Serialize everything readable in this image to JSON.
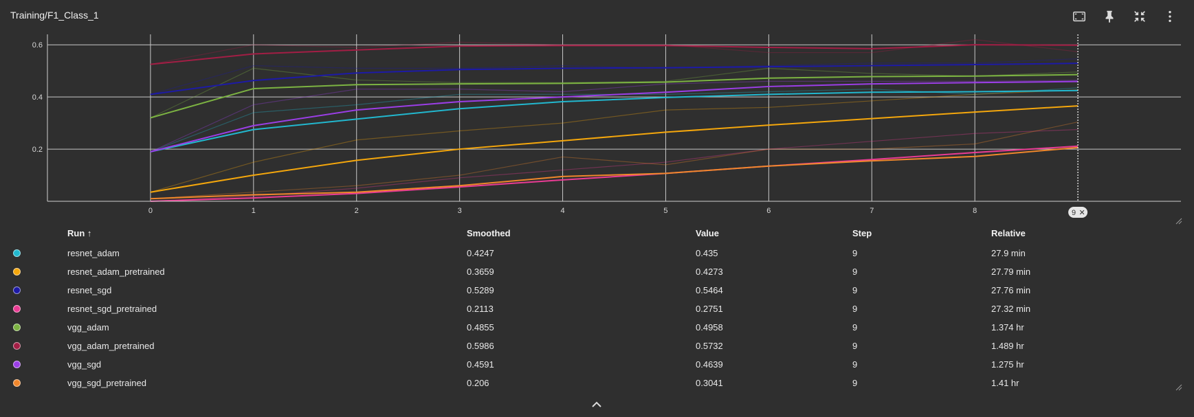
{
  "header": {
    "title": "Training/F1_Class_1"
  },
  "toolbar": {
    "items": [
      {
        "name": "fit-domain-button",
        "icon": "fit-screen-icon"
      },
      {
        "name": "pin-button",
        "icon": "pin-icon"
      },
      {
        "name": "collapse-card-button",
        "icon": "fullscreen-exit-icon"
      },
      {
        "name": "more-menu-button",
        "icon": "more-vert-icon"
      }
    ]
  },
  "cursor_step_label": "9",
  "chart_data": {
    "type": "line",
    "title": "Training/F1_Class_1",
    "xlabel": "",
    "ylabel": "",
    "xlim": [
      -1,
      10.0
    ],
    "ylim": [
      0,
      0.64
    ],
    "xticks": [
      0,
      1,
      2,
      3,
      4,
      5,
      6,
      7,
      8
    ],
    "yticks": [
      0.2,
      0.4,
      0.6
    ],
    "grid": true,
    "x": [
      0,
      1,
      2,
      3,
      4,
      5,
      6,
      7,
      8,
      9
    ],
    "series": [
      {
        "name": "resnet_adam",
        "color": "#22b8cf",
        "smoothed": [
          0.19,
          0.275,
          0.315,
          0.355,
          0.382,
          0.398,
          0.41,
          0.418,
          0.42,
          0.4247
        ],
        "raw": [
          0.19,
          0.34,
          0.37,
          0.41,
          0.41,
          0.41,
          0.42,
          0.43,
          0.41,
          0.435
        ]
      },
      {
        "name": "resnet_adam_pretrained",
        "color": "#f5a70c",
        "smoothed": [
          0.035,
          0.1,
          0.157,
          0.2,
          0.232,
          0.265,
          0.292,
          0.317,
          0.342,
          0.3659
        ],
        "raw": [
          0.035,
          0.15,
          0.235,
          0.27,
          0.3,
          0.35,
          0.36,
          0.385,
          0.41,
          0.4273
        ]
      },
      {
        "name": "resnet_sgd",
        "color": "#1d1aa6",
        "smoothed": [
          0.41,
          0.463,
          0.492,
          0.505,
          0.51,
          0.512,
          0.516,
          0.52,
          0.524,
          0.5289
        ],
        "raw": [
          0.41,
          0.52,
          0.51,
          0.51,
          0.52,
          0.51,
          0.52,
          0.53,
          0.53,
          0.5464
        ]
      },
      {
        "name": "resnet_sgd_pretrained",
        "color": "#ea3c94",
        "smoothed": [
          0,
          0.013,
          0.03,
          0.055,
          0.082,
          0.107,
          0.135,
          0.16,
          0.187,
          0.2113
        ],
        "raw": [
          0,
          0.02,
          0.05,
          0.09,
          0.12,
          0.15,
          0.2,
          0.23,
          0.26,
          0.2751
        ]
      },
      {
        "name": "vgg_adam",
        "color": "#7cb342",
        "smoothed": [
          0.32,
          0.432,
          0.447,
          0.45,
          0.452,
          0.457,
          0.472,
          0.478,
          0.48,
          0.4855
        ],
        "raw": [
          0.32,
          0.51,
          0.465,
          0.455,
          0.455,
          0.46,
          0.51,
          0.49,
          0.48,
          0.4958
        ]
      },
      {
        "name": "vgg_adam_pretrained",
        "color": "#a31e45",
        "smoothed": [
          0.525,
          0.565,
          0.58,
          0.595,
          0.597,
          0.597,
          0.59,
          0.585,
          0.6,
          0.5986
        ],
        "raw": [
          0.525,
          0.6,
          0.59,
          0.61,
          0.6,
          0.6,
          0.57,
          0.57,
          0.62,
          0.5732
        ]
      },
      {
        "name": "vgg_sgd",
        "color": "#9b3ee6",
        "smoothed": [
          0.19,
          0.29,
          0.35,
          0.382,
          0.4,
          0.418,
          0.44,
          0.45,
          0.455,
          0.4591
        ],
        "raw": [
          0.19,
          0.37,
          0.43,
          0.43,
          0.42,
          0.45,
          0.46,
          0.46,
          0.46,
          0.4639
        ]
      },
      {
        "name": "vgg_sgd_pretrained",
        "color": "#f0872c",
        "smoothed": [
          0.01,
          0.025,
          0.035,
          0.06,
          0.095,
          0.107,
          0.135,
          0.155,
          0.172,
          0.206
        ],
        "raw": [
          0.01,
          0.035,
          0.06,
          0.1,
          0.17,
          0.14,
          0.2,
          0.2,
          0.22,
          0.3041
        ]
      }
    ]
  },
  "table": {
    "headers": {
      "run": "Run ↑",
      "smoothed": "Smoothed",
      "value": "Value",
      "step": "Step",
      "relative": "Relative"
    },
    "rows": [
      {
        "run": "resnet_adam",
        "smoothed": "0.4247",
        "value": "0.435",
        "step": "9",
        "relative": "27.9 min",
        "color": "#22b8cf"
      },
      {
        "run": "resnet_adam_pretrained",
        "smoothed": "0.3659",
        "value": "0.4273",
        "step": "9",
        "relative": "27.79 min",
        "color": "#f5a70c"
      },
      {
        "run": "resnet_sgd",
        "smoothed": "0.5289",
        "value": "0.5464",
        "step": "9",
        "relative": "27.76 min",
        "color": "#1d1aa6"
      },
      {
        "run": "resnet_sgd_pretrained",
        "smoothed": "0.2113",
        "value": "0.2751",
        "step": "9",
        "relative": "27.32 min",
        "color": "#ea3c94"
      },
      {
        "run": "vgg_adam",
        "smoothed": "0.4855",
        "value": "0.4958",
        "step": "9",
        "relative": "1.374 hr",
        "color": "#7cb342"
      },
      {
        "run": "vgg_adam_pretrained",
        "smoothed": "0.5986",
        "value": "0.5732",
        "step": "9",
        "relative": "1.489 hr",
        "color": "#a31e45"
      },
      {
        "run": "vgg_sgd",
        "smoothed": "0.4591",
        "value": "0.4639",
        "step": "9",
        "relative": "1.275 hr",
        "color": "#9b3ee6"
      },
      {
        "run": "vgg_sgd_pretrained",
        "smoothed": "0.206",
        "value": "0.3041",
        "step": "9",
        "relative": "1.41 hr",
        "color": "#f0872c"
      }
    ]
  }
}
